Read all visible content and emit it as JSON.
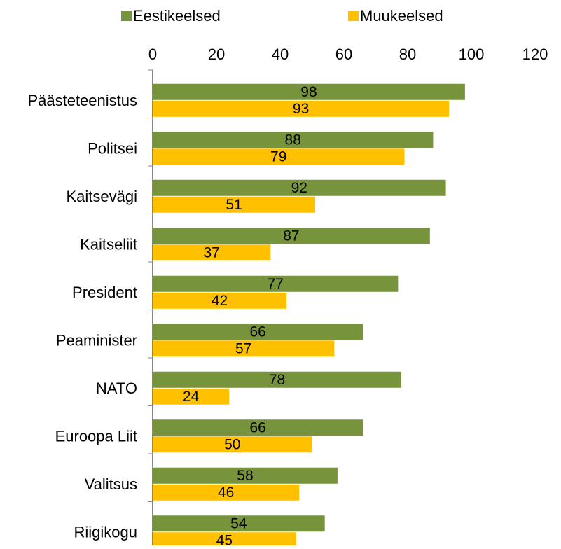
{
  "chart_data": {
    "type": "bar",
    "orientation": "horizontal",
    "title": "",
    "xlabel": "",
    "ylabel": "",
    "xlim": [
      0,
      120
    ],
    "xticks": [
      "0",
      "20",
      "40",
      "60",
      "80",
      "100",
      "120"
    ],
    "grid": false,
    "legend": {
      "position": "top"
    },
    "categories": [
      "Päästeteenistus",
      "Politsei",
      "Kaitsevägi",
      "Kaitseliit",
      "President",
      "Peaminister",
      "NATO",
      "Euroopa Liit",
      "Valitsus",
      "Riigikogu"
    ],
    "series": [
      {
        "name": "Eestikeelsed",
        "color": "#77933c",
        "values": [
          98,
          88,
          92,
          87,
          77,
          66,
          78,
          66,
          58,
          54
        ]
      },
      {
        "name": "Muukeelsed",
        "color": "#ffc000",
        "values": [
          93,
          79,
          51,
          37,
          42,
          57,
          24,
          50,
          46,
          45
        ]
      }
    ]
  }
}
